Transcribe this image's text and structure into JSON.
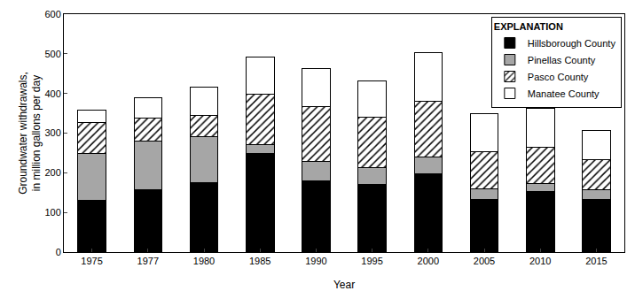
{
  "chart_data": {
    "type": "bar",
    "stacked": true,
    "x_label": "Year",
    "y_label": [
      "Groundwater withdrawals,",
      "in million gallons per day"
    ],
    "legend_title": "EXPLANATION",
    "legend": "upper right",
    "grid": false,
    "categories": [
      "1975",
      "1977",
      "1980",
      "1985",
      "1990",
      "1995",
      "2000",
      "2005",
      "2010",
      "2015"
    ],
    "series": [
      {
        "name": "Hillsborough County",
        "color": "#000000",
        "marker": "solid",
        "values": [
          130,
          158,
          175,
          248,
          180,
          170,
          198,
          132,
          152,
          132
        ]
      },
      {
        "name": "Pinellas County",
        "color": "#a6a6a6",
        "marker": "solid",
        "values": [
          118,
          121,
          116,
          24,
          48,
          42,
          42,
          28,
          20,
          25
        ]
      },
      {
        "name": "Pasco County",
        "color": "#ffffff",
        "marker": "hatch",
        "values": [
          79,
          59,
          54,
          126,
          138,
          129,
          140,
          94,
          93,
          75
        ]
      },
      {
        "name": "Manatee County",
        "color": "#ffffff",
        "marker": "solid",
        "values": [
          31,
          52,
          70,
          94,
          97,
          91,
          123,
          96,
          98,
          75
        ]
      }
    ],
    "ylim": [
      0,
      600
    ],
    "yticks": [
      0,
      100,
      200,
      300,
      400,
      500,
      600
    ]
  }
}
